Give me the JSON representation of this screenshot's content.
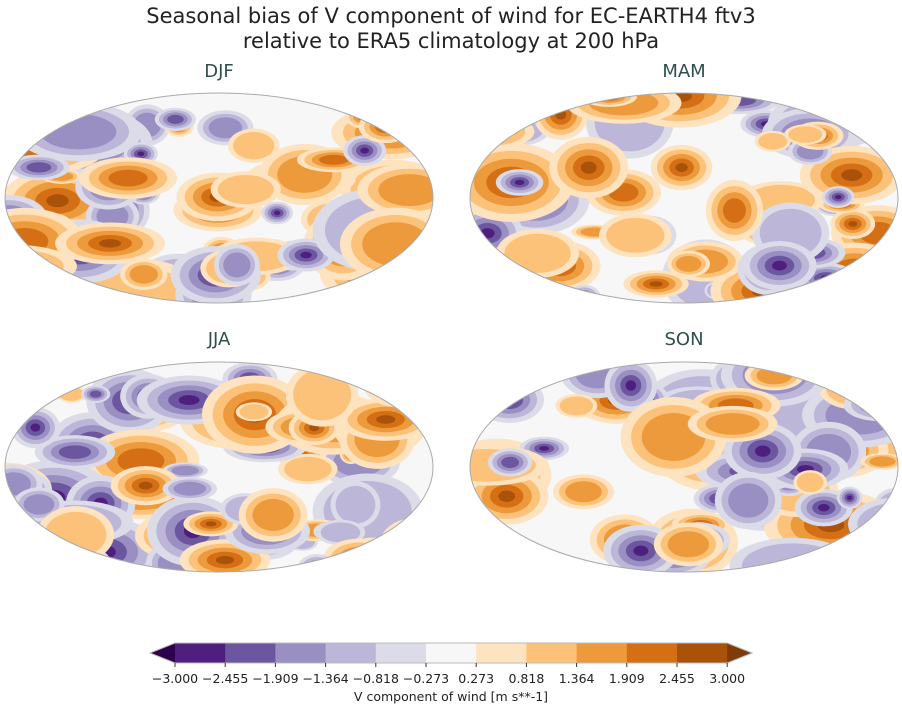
{
  "title_line1": "Seasonal bias of V component of wind for EC-EARTH4 ftv3",
  "title_line2": "relative to ERA5 climatology at 200 hPa",
  "panels": [
    {
      "label": "DJF"
    },
    {
      "label": "MAM"
    },
    {
      "label": "JJA"
    },
    {
      "label": "SON"
    }
  ],
  "colorbar": {
    "label": "V component of wind [m s**-1]",
    "ticks": [
      "−3.000",
      "−2.455",
      "−1.909",
      "−1.364",
      "−0.818",
      "−0.273",
      "0.273",
      "0.818",
      "1.364",
      "1.909",
      "2.455",
      "3.000"
    ],
    "colors": [
      "#2d004b",
      "#4f1f7f",
      "#6d56a0",
      "#9a8fc2",
      "#bcb6d9",
      "#dcdce9",
      "#f7f7f7",
      "#fde3bf",
      "#fdc27a",
      "#ec9a3c",
      "#d46f15",
      "#a8520a",
      "#7f3b08"
    ],
    "extend": "both"
  }
}
